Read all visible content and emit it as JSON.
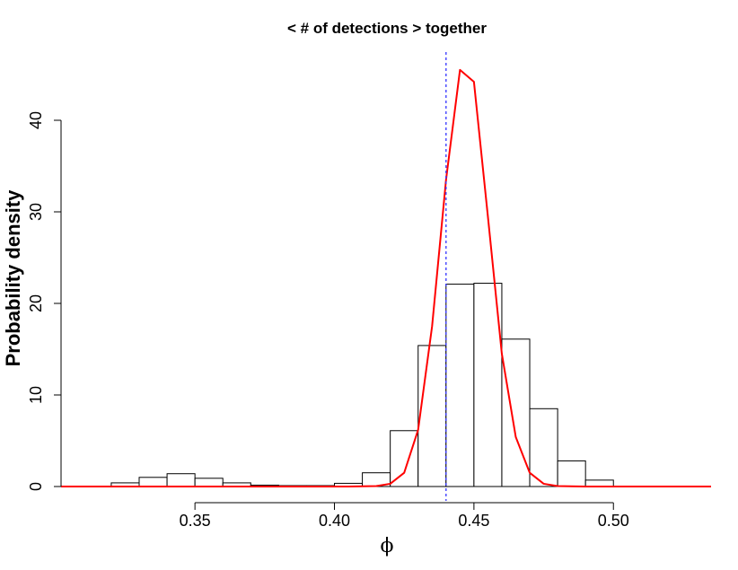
{
  "chart_data": {
    "type": "bar",
    "title": "< # of detections > together",
    "xlabel": "ϕ",
    "ylabel": "Probability density",
    "xlim": [
      0.302,
      0.535
    ],
    "ylim": [
      0,
      46
    ],
    "x_ticks": [
      0.35,
      0.4,
      0.45,
      0.5
    ],
    "x_tick_labels": [
      "0.35",
      "0.40",
      "0.45",
      "0.50"
    ],
    "y_ticks": [
      0,
      10,
      20,
      30,
      40
    ],
    "y_tick_labels": [
      "0",
      "10",
      "20",
      "30",
      "40"
    ],
    "grid": false,
    "histogram": {
      "bin_width": 0.01,
      "bins": [
        {
          "x0": 0.32,
          "x1": 0.33,
          "density": 0.4
        },
        {
          "x0": 0.33,
          "x1": 0.34,
          "density": 1.0
        },
        {
          "x0": 0.34,
          "x1": 0.35,
          "density": 1.4
        },
        {
          "x0": 0.35,
          "x1": 0.36,
          "density": 0.9
        },
        {
          "x0": 0.36,
          "x1": 0.37,
          "density": 0.4
        },
        {
          "x0": 0.37,
          "x1": 0.38,
          "density": 0.15
        },
        {
          "x0": 0.38,
          "x1": 0.39,
          "density": 0.1
        },
        {
          "x0": 0.39,
          "x1": 0.4,
          "density": 0.1
        },
        {
          "x0": 0.4,
          "x1": 0.41,
          "density": 0.35
        },
        {
          "x0": 0.41,
          "x1": 0.42,
          "density": 1.5
        },
        {
          "x0": 0.42,
          "x1": 0.43,
          "density": 6.1
        },
        {
          "x0": 0.43,
          "x1": 0.44,
          "density": 15.4
        },
        {
          "x0": 0.44,
          "x1": 0.45,
          "density": 22.1
        },
        {
          "x0": 0.45,
          "x1": 0.46,
          "density": 22.2
        },
        {
          "x0": 0.46,
          "x1": 0.47,
          "density": 16.1
        },
        {
          "x0": 0.47,
          "x1": 0.48,
          "density": 8.5
        },
        {
          "x0": 0.48,
          "x1": 0.49,
          "density": 2.8
        },
        {
          "x0": 0.49,
          "x1": 0.5,
          "density": 0.7
        }
      ],
      "fill_color": "#ffffff",
      "edge_color": "#000000"
    },
    "density_curve": {
      "color": "#ff0000",
      "x": [
        0.302,
        0.405,
        0.415,
        0.42,
        0.425,
        0.43,
        0.435,
        0.44,
        0.445,
        0.45,
        0.455,
        0.46,
        0.465,
        0.47,
        0.475,
        0.48,
        0.49,
        0.535
      ],
      "y": [
        0,
        0,
        0.05,
        0.3,
        1.5,
        6.2,
        17.5,
        33.5,
        45.5,
        44.2,
        29.5,
        14.5,
        5.4,
        1.5,
        0.3,
        0.05,
        0,
        0
      ]
    },
    "reference_line": {
      "x": 0.44,
      "style": "dotted",
      "color": "#3333ff"
    }
  }
}
